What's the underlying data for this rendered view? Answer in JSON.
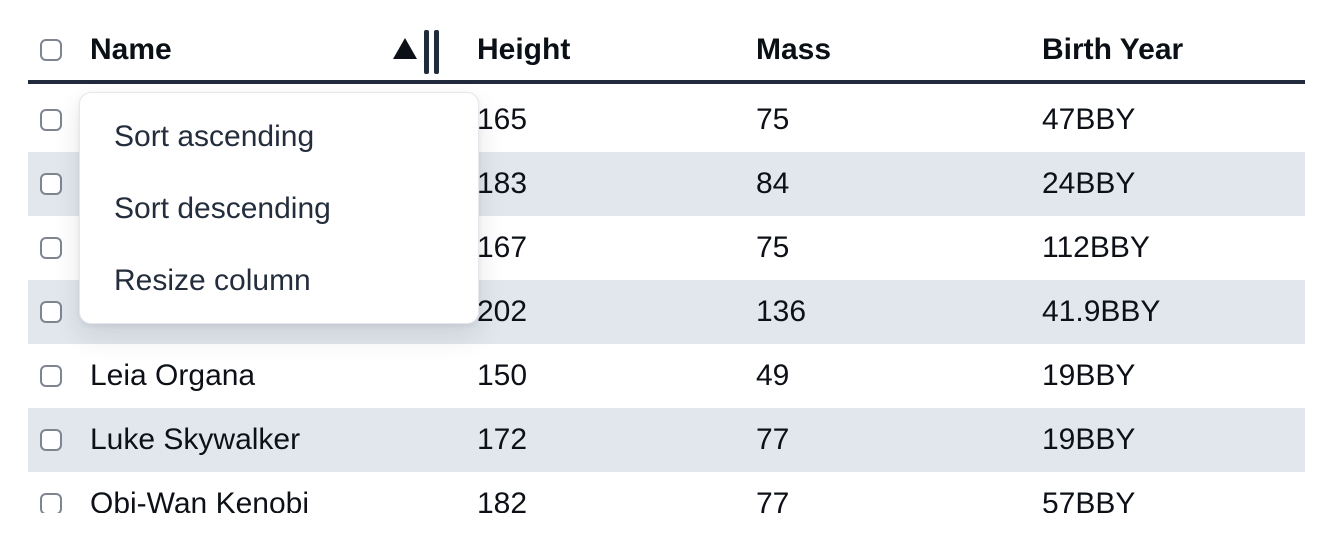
{
  "table": {
    "columns": [
      {
        "label": "Name",
        "sort_state": "ascending"
      },
      {
        "label": "Height"
      },
      {
        "label": "Mass"
      },
      {
        "label": "Birth Year"
      }
    ],
    "rows": [
      {
        "name": "",
        "height": "165",
        "mass": "75",
        "birth_year": "47BBY"
      },
      {
        "name": "",
        "height": "183",
        "mass": "84",
        "birth_year": "24BBY"
      },
      {
        "name": "",
        "height": "167",
        "mass": "75",
        "birth_year": "112BBY"
      },
      {
        "name": "",
        "height": "202",
        "mass": "136",
        "birth_year": "41.9BBY"
      },
      {
        "name": "Leia Organa",
        "height": "150",
        "mass": "49",
        "birth_year": "19BBY"
      },
      {
        "name": "Luke Skywalker",
        "height": "172",
        "mass": "77",
        "birth_year": "19BBY"
      },
      {
        "name": "Obi-Wan Kenobi",
        "height": "182",
        "mass": "77",
        "birth_year": "57BBY"
      }
    ],
    "select_all_checked": false,
    "row_checkboxes_checked": [
      false,
      false,
      false,
      false,
      false,
      false,
      false
    ]
  },
  "menu": {
    "items": [
      {
        "label": "Sort ascending"
      },
      {
        "label": "Sort descending"
      },
      {
        "label": "Resize column"
      }
    ]
  },
  "icons": {
    "sort_indicator": "triangle-up",
    "resize_handle": "double-vertical-bars",
    "row_selector": "checkbox"
  },
  "colors": {
    "header_border": "#212b3b",
    "row_stripe": "#e2e7ee",
    "text": "#0d1117",
    "menu_text": "#232d3c",
    "checkbox_border": "#7e8590",
    "menu_border": "#e4e7ec"
  }
}
